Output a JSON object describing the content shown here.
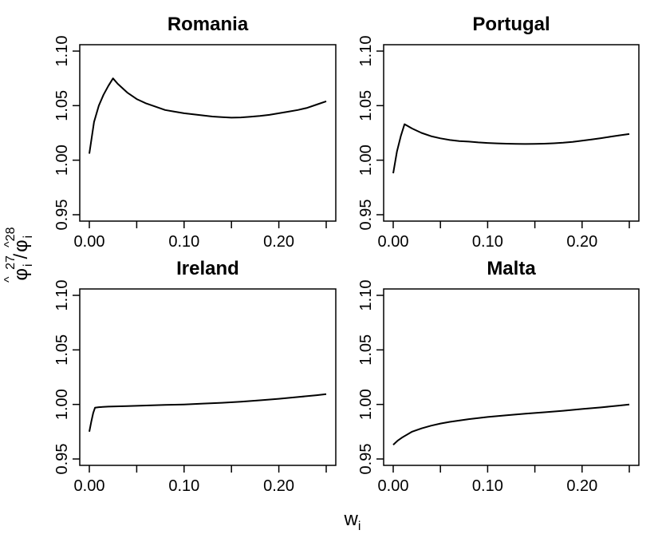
{
  "figure": {
    "xlabel_main": "w",
    "xlabel_sub": "i",
    "ylabel": {
      "top_base": "φ",
      "top_sub": "i",
      "top_sup": "27",
      "sep": "/",
      "bot_base": "φ",
      "bot_sub": "i",
      "bot_sup": "28"
    }
  },
  "chart_data": [
    {
      "type": "line",
      "title": "Romania",
      "xlim": [
        0,
        0.25
      ],
      "ylim": [
        0.95,
        1.1
      ],
      "xticks": [
        0.0,
        0.05,
        0.1,
        0.15,
        0.2,
        0.25
      ],
      "xtick_labels": [
        "0.00",
        "",
        "0.10",
        "",
        "0.20",
        ""
      ],
      "yticks": [
        0.95,
        1.0,
        1.05,
        1.1
      ],
      "ytick_labels": [
        "0.95",
        "1.00",
        "1.05",
        "1.10"
      ],
      "series": [
        {
          "x": [
            0.0,
            0.005,
            0.01,
            0.015,
            0.02,
            0.025,
            0.03,
            0.04,
            0.05,
            0.06,
            0.07,
            0.08,
            0.09,
            0.1,
            0.11,
            0.12,
            0.13,
            0.14,
            0.15,
            0.16,
            0.17,
            0.18,
            0.19,
            0.2,
            0.21,
            0.22,
            0.23,
            0.24,
            0.25
          ],
          "y": [
            1.006,
            1.035,
            1.05,
            1.06,
            1.068,
            1.075,
            1.07,
            1.062,
            1.056,
            1.052,
            1.049,
            1.046,
            1.0445,
            1.043,
            1.042,
            1.041,
            1.04,
            1.0395,
            1.039,
            1.0392,
            1.0398,
            1.0405,
            1.0415,
            1.043,
            1.0445,
            1.046,
            1.048,
            1.051,
            1.054
          ]
        }
      ]
    },
    {
      "type": "line",
      "title": "Portugal",
      "xlim": [
        0,
        0.25
      ],
      "ylim": [
        0.95,
        1.1
      ],
      "xticks": [
        0.0,
        0.05,
        0.1,
        0.15,
        0.2,
        0.25
      ],
      "xtick_labels": [
        "0.00",
        "",
        "0.10",
        "",
        "0.20",
        ""
      ],
      "yticks": [
        0.95,
        1.0,
        1.05,
        1.1
      ],
      "ytick_labels": [
        "0.95",
        "1.00",
        "1.05",
        "1.10"
      ],
      "series": [
        {
          "x": [
            0.0,
            0.004,
            0.008,
            0.012,
            0.016,
            0.02,
            0.03,
            0.04,
            0.05,
            0.06,
            0.07,
            0.08,
            0.09,
            0.1,
            0.11,
            0.12,
            0.13,
            0.14,
            0.15,
            0.16,
            0.17,
            0.18,
            0.19,
            0.2,
            0.21,
            0.22,
            0.23,
            0.24,
            0.25
          ],
          "y": [
            0.988,
            1.008,
            1.022,
            1.033,
            1.031,
            1.029,
            1.025,
            1.022,
            1.02,
            1.0185,
            1.0175,
            1.017,
            1.0163,
            1.0158,
            1.0154,
            1.0151,
            1.0149,
            1.0148,
            1.0149,
            1.0151,
            1.0155,
            1.016,
            1.0168,
            1.0178,
            1.019,
            1.0202,
            1.0215,
            1.0228,
            1.024
          ]
        }
      ]
    },
    {
      "type": "line",
      "title": "Ireland",
      "xlim": [
        0,
        0.25
      ],
      "ylim": [
        0.95,
        1.1
      ],
      "xticks": [
        0.0,
        0.05,
        0.1,
        0.15,
        0.2,
        0.25
      ],
      "xtick_labels": [
        "0.00",
        "",
        "0.10",
        "",
        "0.20",
        ""
      ],
      "yticks": [
        0.95,
        1.0,
        1.05,
        1.1
      ],
      "ytick_labels": [
        "0.95",
        "1.00",
        "1.05",
        "1.10"
      ],
      "series": [
        {
          "x": [
            0.0,
            0.002,
            0.004,
            0.006,
            0.01,
            0.02,
            0.04,
            0.06,
            0.08,
            0.1,
            0.12,
            0.14,
            0.16,
            0.18,
            0.2,
            0.22,
            0.24,
            0.25
          ],
          "y": [
            0.975,
            0.984,
            0.992,
            0.997,
            0.9975,
            0.998,
            0.9985,
            0.999,
            0.9995,
            1.0,
            1.0008,
            1.0015,
            1.0025,
            1.0038,
            1.0052,
            1.0068,
            1.0085,
            1.0095
          ]
        }
      ]
    },
    {
      "type": "line",
      "title": "Malta",
      "xlim": [
        0,
        0.25
      ],
      "ylim": [
        0.95,
        1.1
      ],
      "xticks": [
        0.0,
        0.05,
        0.1,
        0.15,
        0.2,
        0.25
      ],
      "xtick_labels": [
        "0.00",
        "",
        "0.10",
        "",
        "0.20",
        ""
      ],
      "yticks": [
        0.95,
        1.0,
        1.05,
        1.1
      ],
      "ytick_labels": [
        "0.95",
        "1.00",
        "1.05",
        "1.10"
      ],
      "series": [
        {
          "x": [
            0.0,
            0.005,
            0.01,
            0.02,
            0.03,
            0.04,
            0.05,
            0.06,
            0.08,
            0.1,
            0.12,
            0.14,
            0.16,
            0.18,
            0.2,
            0.22,
            0.24,
            0.25
          ],
          "y": [
            0.963,
            0.967,
            0.97,
            0.975,
            0.978,
            0.9805,
            0.9825,
            0.984,
            0.9865,
            0.9885,
            0.99,
            0.9915,
            0.9928,
            0.9942,
            0.9958,
            0.9973,
            0.999,
            1.0
          ]
        }
      ]
    }
  ]
}
